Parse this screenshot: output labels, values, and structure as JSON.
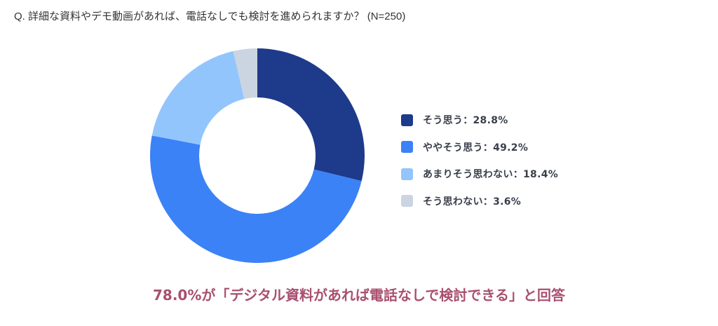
{
  "question": "Q. 詳細な資料やデモ動画があれば、電話なしでも検討を進められますか？ (N=250)",
  "legend": {
    "items": [
      {
        "label": "そう思う：28.8%",
        "color": "#1e3a8a"
      },
      {
        "label": "ややそう思う：49.2%",
        "color": "#3b82f6"
      },
      {
        "label": "あまりそう思わない：18.4%",
        "color": "#93c5fd"
      },
      {
        "label": "そう思わない：3.6%",
        "color": "#cbd5e1"
      }
    ]
  },
  "conclusion": "78.0%が「デジタル資料があれば電話なしで検討できる」と回答",
  "chart_data": {
    "type": "pie",
    "subtype": "donut",
    "title": "Q. 詳細な資料やデモ動画があれば、電話なしでも検討を進められますか？ (N=250)",
    "categories": [
      "そう思う",
      "ややそう思う",
      "あまりそう思わない",
      "そう思わない"
    ],
    "values": [
      28.8,
      49.2,
      18.4,
      3.6
    ],
    "unit": "%",
    "colors": [
      "#1e3a8a",
      "#3b82f6",
      "#93c5fd",
      "#cbd5e1"
    ],
    "start_angle": "12 o'clock",
    "direction": "clockwise",
    "legend_position": "right",
    "annotation": "78.0%が「デジタル資料があれば電話なしで検討できる」と回答",
    "n": 250
  }
}
